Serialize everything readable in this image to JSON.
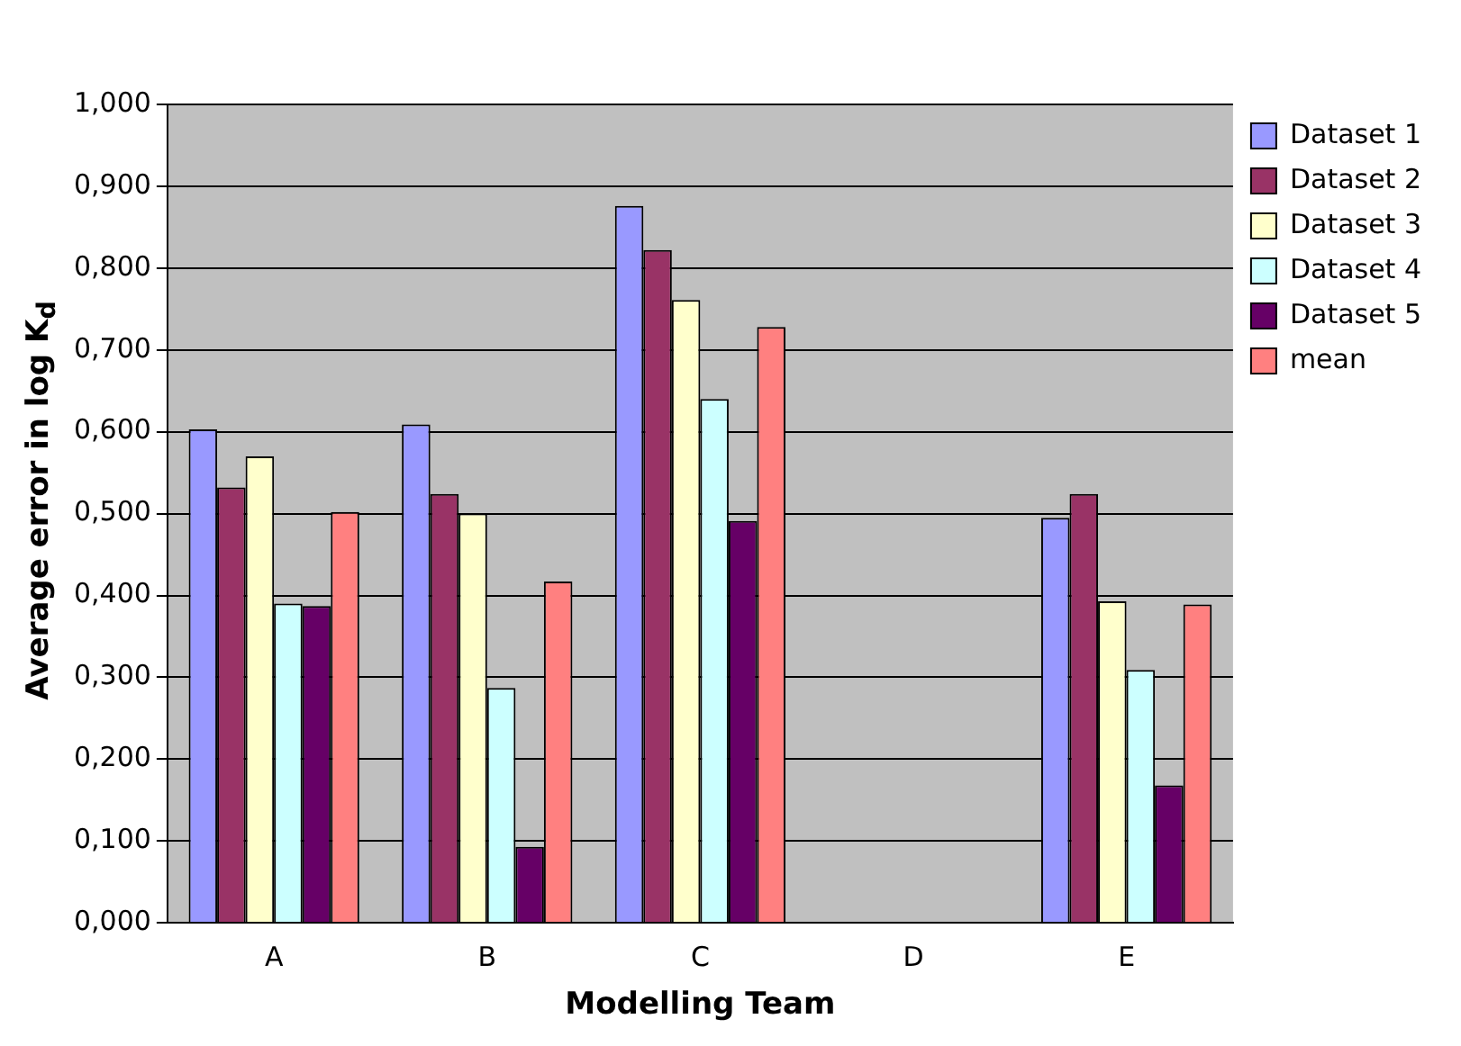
{
  "chart_data": {
    "type": "bar",
    "xlabel": "Modelling Team",
    "ylabel": "Average error in log K$_{d}$",
    "categories": [
      "A",
      "B",
      "C",
      "D",
      "E"
    ],
    "series": [
      {
        "name": "Dataset 1",
        "color": "#9999ff",
        "values": [
          0.603,
          0.609,
          0.876,
          null,
          0.495
        ]
      },
      {
        "name": "Dataset 2",
        "color": "#993366",
        "values": [
          0.532,
          0.524,
          0.822,
          null,
          0.524
        ]
      },
      {
        "name": "Dataset 3",
        "color": "#ffffcc",
        "values": [
          0.57,
          0.5,
          0.761,
          null,
          0.393
        ]
      },
      {
        "name": "Dataset 4",
        "color": "#ccffff",
        "values": [
          0.39,
          0.287,
          0.64,
          null,
          0.309
        ]
      },
      {
        "name": "Dataset 5",
        "color": "#660066",
        "values": [
          0.387,
          0.093,
          0.491,
          null,
          0.168
        ]
      },
      {
        "name": "mean",
        "color": "#ff8080",
        "values": [
          0.502,
          0.417,
          0.728,
          null,
          0.389
        ]
      }
    ],
    "ylim": [
      0,
      1
    ],
    "yticks": [
      {
        "value": 0,
        "label": "0,000"
      },
      {
        "value": 0.1,
        "label": "0,100"
      },
      {
        "value": 0.2,
        "label": "0,200"
      },
      {
        "value": 0.3,
        "label": "0,300"
      },
      {
        "value": 0.4,
        "label": "0,400"
      },
      {
        "value": 0.5,
        "label": "0,500"
      },
      {
        "value": 0.6,
        "label": "0,600"
      },
      {
        "value": 0.7,
        "label": "0,700"
      },
      {
        "value": 0.8,
        "label": "0,800"
      },
      {
        "value": 0.9,
        "label": "0,900"
      },
      {
        "value": 1,
        "label": "1,000"
      }
    ],
    "grid": "y",
    "legend": "right"
  }
}
